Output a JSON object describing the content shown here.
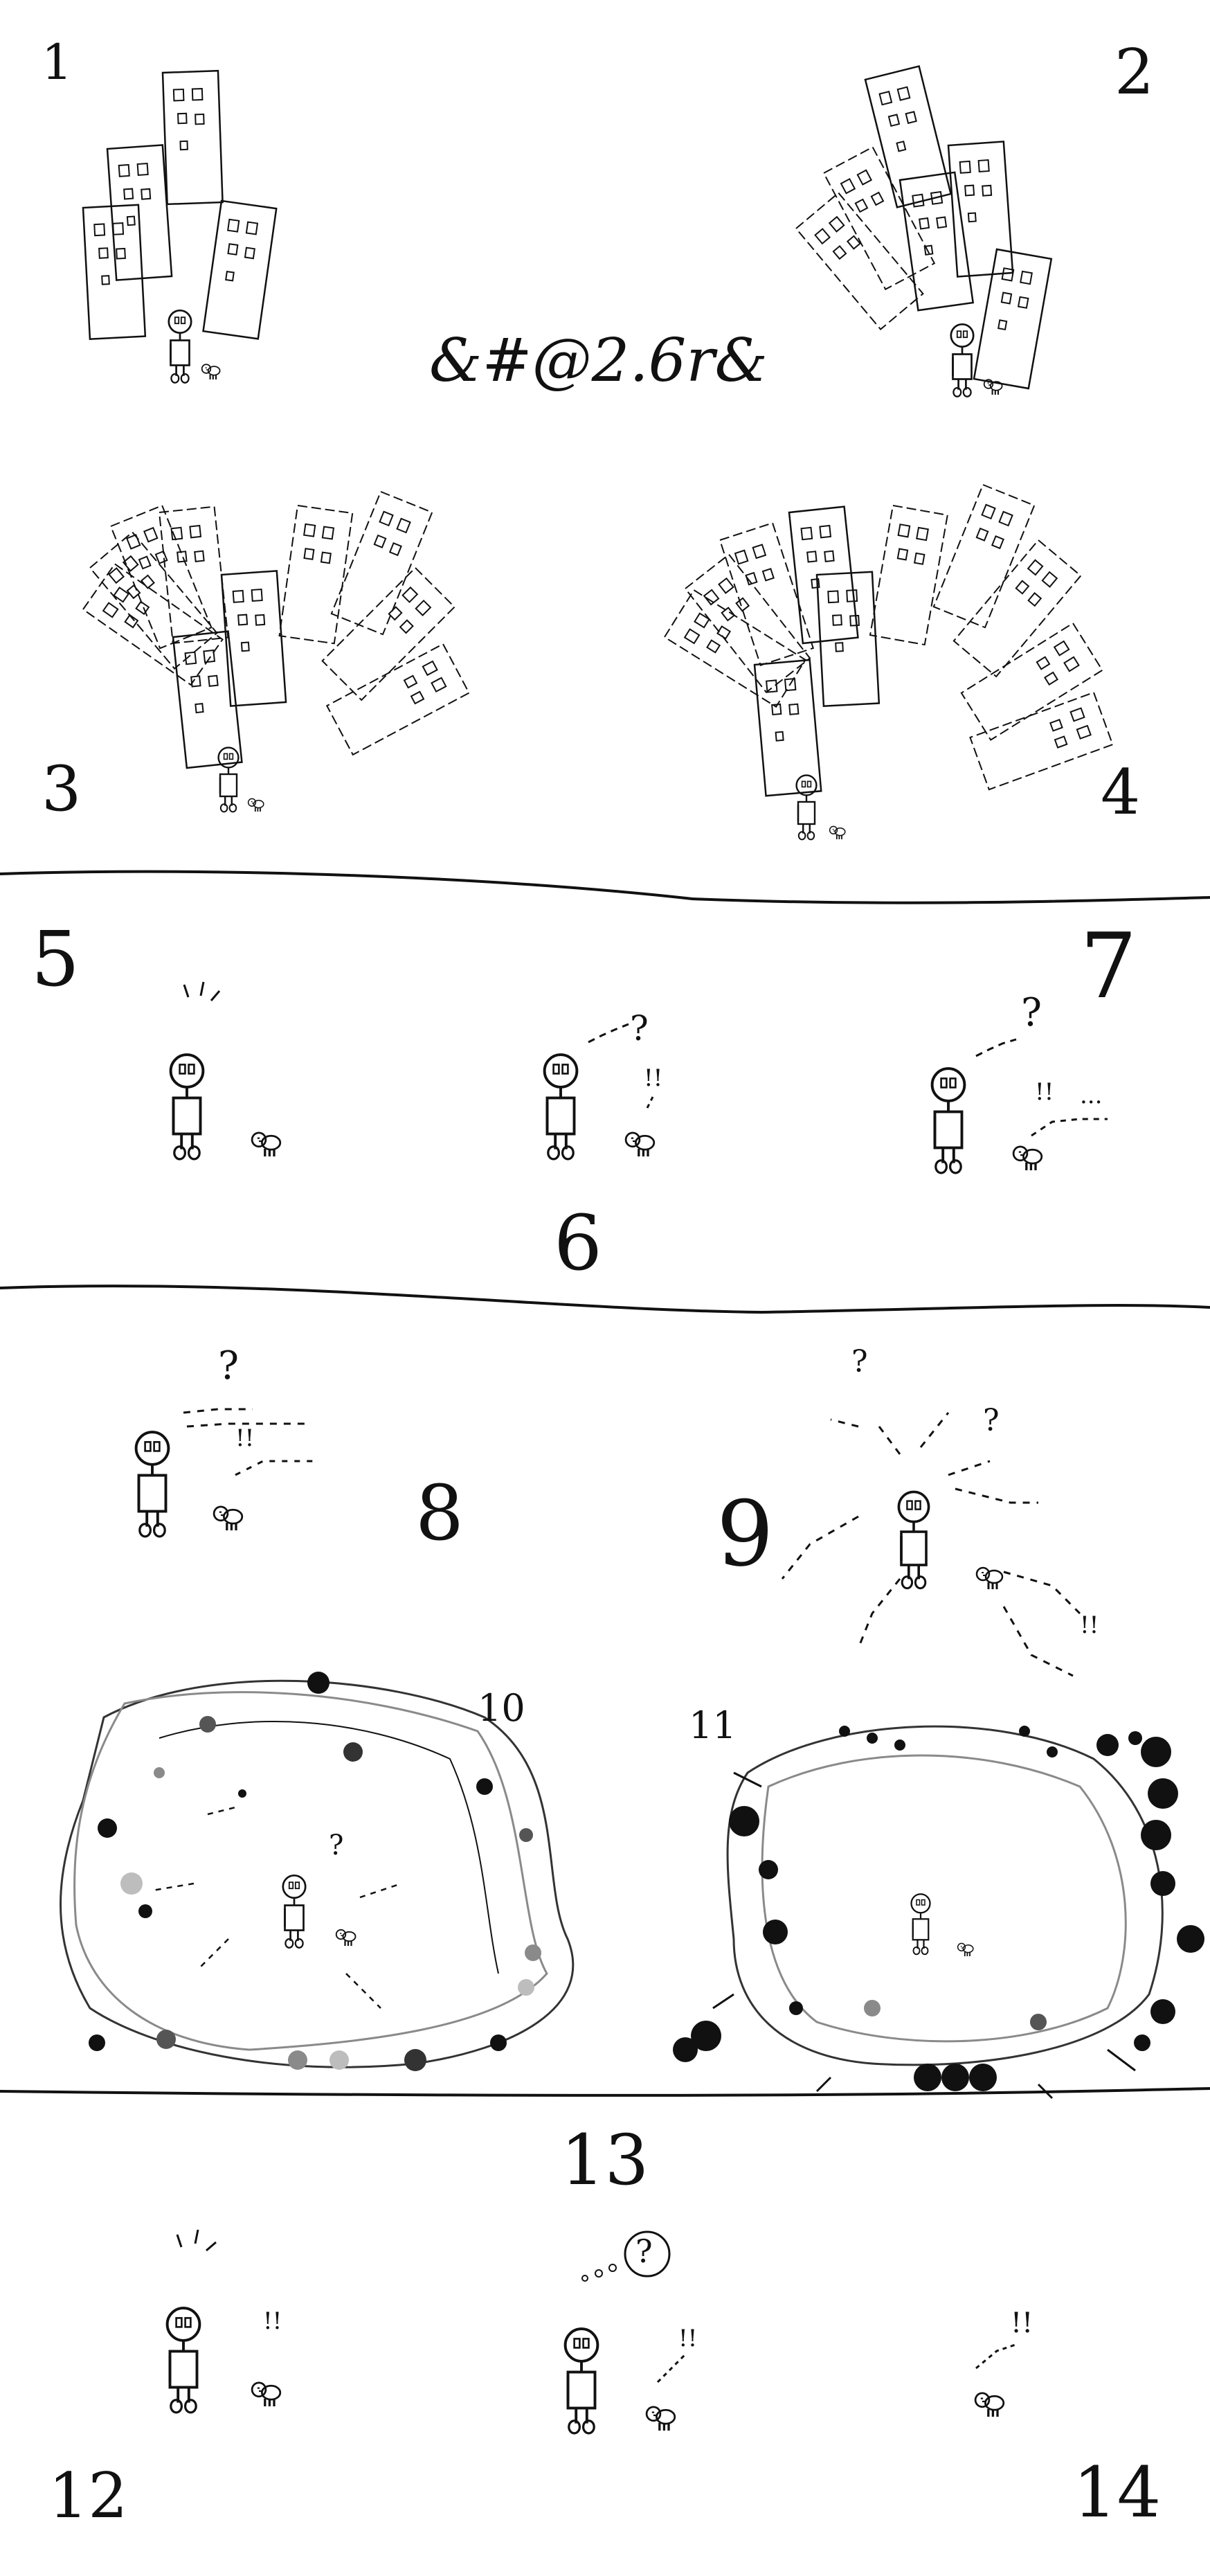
{
  "signature": "&#@2.6r&",
  "panels": [
    {
      "label": "1"
    },
    {
      "label": "2"
    },
    {
      "label": "3"
    },
    {
      "label": "4"
    },
    {
      "label": "5"
    },
    {
      "label": "6"
    },
    {
      "label": "7"
    },
    {
      "label": "8"
    },
    {
      "label": "9"
    },
    {
      "label": "10"
    },
    {
      "label": "11"
    },
    {
      "label": "12"
    },
    {
      "label": "13"
    },
    {
      "label": "14"
    }
  ],
  "marks": {
    "question": "?",
    "exclaim": "!!",
    "exclaim_single": "!!",
    "dots": "...",
    "think_dots": "o o o"
  },
  "colors": {
    "ink": "#111111",
    "paper": "#ffffff",
    "gray": "#8a8a8a",
    "light_gray": "#bdbdbd"
  }
}
